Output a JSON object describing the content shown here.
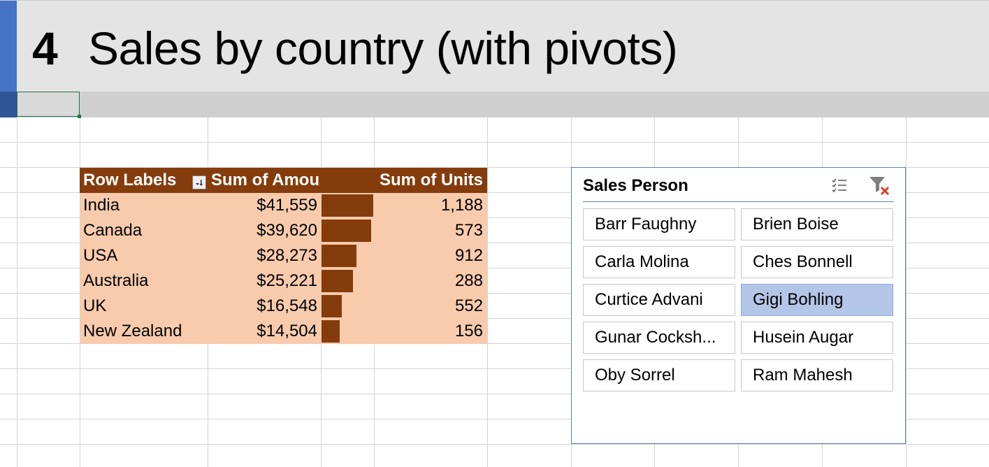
{
  "banner": {
    "number": "4",
    "title": "Sales by country (with pivots)"
  },
  "pivot": {
    "headers": [
      "Row Labels",
      "Sum of Amou",
      "Sum of Units"
    ],
    "rows": [
      {
        "label": "India",
        "amount": "$41,559",
        "units": "1,188",
        "amount_value": 41559
      },
      {
        "label": "Canada",
        "amount": "$39,620",
        "units": "573",
        "amount_value": 39620
      },
      {
        "label": "USA",
        "amount": "$28,273",
        "units": "912",
        "amount_value": 28273
      },
      {
        "label": "Australia",
        "amount": "$25,221",
        "units": "288",
        "amount_value": 25221
      },
      {
        "label": "UK",
        "amount": "$16,548",
        "units": "552",
        "amount_value": 16548
      },
      {
        "label": "New Zealand",
        "amount": "$14,504",
        "units": "156",
        "amount_value": 14504
      }
    ],
    "bar_color": "#843c0c",
    "header_color": "#843c0c",
    "body_color": "#f8cbad"
  },
  "slicer": {
    "title": "Sales Person",
    "items": [
      {
        "label": "Barr Faughny",
        "selected": false
      },
      {
        "label": "Brien Boise",
        "selected": false
      },
      {
        "label": "Carla Molina",
        "selected": false
      },
      {
        "label": "Ches Bonnell",
        "selected": false
      },
      {
        "label": "Curtice Advani",
        "selected": false
      },
      {
        "label": "Gigi Bohling",
        "selected": true
      },
      {
        "label": "Gunar Cocksh...",
        "selected": false
      },
      {
        "label": "Husein Augar",
        "selected": false
      },
      {
        "label": "Oby Sorrel",
        "selected": false
      },
      {
        "label": "Ram Mahesh",
        "selected": false
      }
    ],
    "icons": [
      "multi-select-icon",
      "clear-filter-icon"
    ],
    "selected_color": "#b4c6e7"
  },
  "colors": {
    "accent": "#4472c4",
    "selection": "#217346"
  }
}
